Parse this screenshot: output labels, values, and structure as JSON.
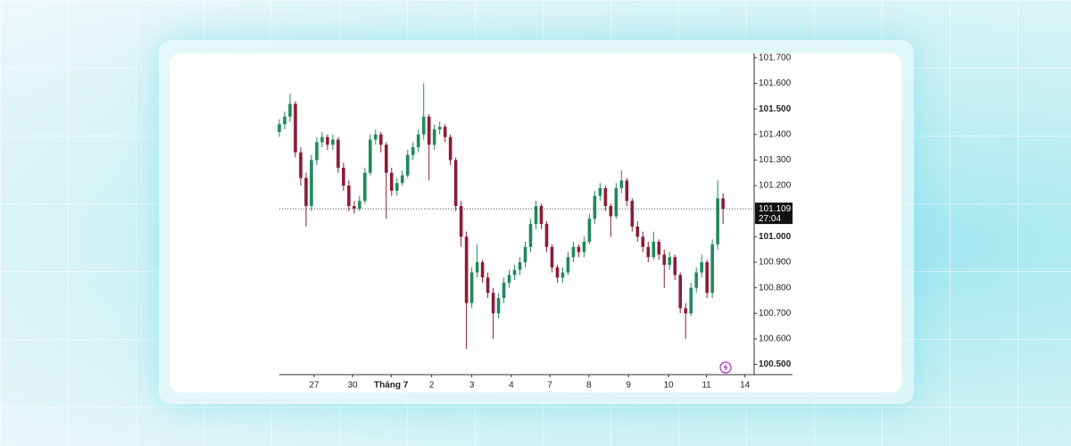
{
  "chart_data": {
    "type": "candlestick",
    "x": [
      0,
      1,
      2,
      3,
      4,
      5,
      6,
      7,
      8,
      9,
      10,
      11,
      12,
      13,
      14,
      15,
      16,
      17,
      18,
      19,
      20,
      21,
      22,
      23,
      24,
      25,
      26,
      27,
      28,
      29,
      30,
      31,
      32,
      33,
      34,
      35,
      36,
      37,
      38,
      39,
      40,
      41,
      42,
      43,
      44,
      45,
      46,
      47,
      48,
      49,
      50,
      51,
      52,
      53,
      54,
      55,
      56,
      57,
      58,
      59,
      60,
      61,
      62,
      63,
      64,
      65,
      66,
      67,
      68,
      69,
      70,
      71,
      72,
      73,
      74,
      75,
      76,
      77,
      78,
      79,
      80,
      81,
      82,
      83
    ],
    "open": [
      101.41,
      101.44,
      101.47,
      101.52,
      101.33,
      101.23,
      101.12,
      101.3,
      101.37,
      101.39,
      101.36,
      101.38,
      101.27,
      101.2,
      101.12,
      101.11,
      101.14,
      101.25,
      101.38,
      101.4,
      101.36,
      101.25,
      101.18,
      101.21,
      101.24,
      101.32,
      101.35,
      101.4,
      101.47,
      101.36,
      101.42,
      101.43,
      101.39,
      101.3,
      101.12,
      101.0,
      100.74,
      100.86,
      100.9,
      100.84,
      100.78,
      100.7,
      100.76,
      100.82,
      100.85,
      100.87,
      100.9,
      100.96,
      101.05,
      101.12,
      101.05,
      100.96,
      100.88,
      100.84,
      100.86,
      100.92,
      100.96,
      100.94,
      100.98,
      101.07,
      101.16,
      101.19,
      101.12,
      101.08,
      101.19,
      101.22,
      101.14,
      101.04,
      101.0,
      100.96,
      100.92,
      100.98,
      100.93,
      100.89,
      100.92,
      100.85,
      100.72,
      100.7,
      100.8,
      100.86,
      100.9,
      100.78,
      100.97,
      101.15
    ],
    "high": [
      101.46,
      101.49,
      101.56,
      101.53,
      101.35,
      101.25,
      101.32,
      101.39,
      101.41,
      101.4,
      101.4,
      101.39,
      101.29,
      101.22,
      101.14,
      101.16,
      101.27,
      101.4,
      101.42,
      101.41,
      101.37,
      101.27,
      101.23,
      101.26,
      101.34,
      101.37,
      101.42,
      101.6,
      101.48,
      101.44,
      101.45,
      101.44,
      101.4,
      101.31,
      101.14,
      101.02,
      100.88,
      100.97,
      100.91,
      100.86,
      100.8,
      100.78,
      100.84,
      100.87,
      100.89,
      100.92,
      100.98,
      101.07,
      101.14,
      101.13,
      101.06,
      100.97,
      100.89,
      100.88,
      100.94,
      100.98,
      100.97,
      101.0,
      101.09,
      101.18,
      101.21,
      101.2,
      101.13,
      101.21,
      101.26,
      101.23,
      101.15,
      101.06,
      101.02,
      100.98,
      101.02,
      100.99,
      100.95,
      100.94,
      100.93,
      100.86,
      100.74,
      100.82,
      100.88,
      100.93,
      100.91,
      100.99,
      101.22,
      101.17
    ],
    "low": [
      101.39,
      101.42,
      101.45,
      101.31,
      101.2,
      101.04,
      101.1,
      101.28,
      101.35,
      101.34,
      101.34,
      101.25,
      101.18,
      101.1,
      101.09,
      101.1,
      101.13,
      101.24,
      101.36,
      101.33,
      101.07,
      101.16,
      101.16,
      101.2,
      101.23,
      101.3,
      101.33,
      101.38,
      101.22,
      101.34,
      101.4,
      101.37,
      101.28,
      101.1,
      100.96,
      100.56,
      100.72,
      100.84,
      100.82,
      100.76,
      100.6,
      100.68,
      100.74,
      100.8,
      100.83,
      100.85,
      100.88,
      100.94,
      101.03,
      101.03,
      100.94,
      100.86,
      100.82,
      100.82,
      100.85,
      100.9,
      100.92,
      100.92,
      100.97,
      101.05,
      101.14,
      101.1,
      101.0,
      101.07,
      101.17,
      101.12,
      101.02,
      100.98,
      100.94,
      100.9,
      100.91,
      100.91,
      100.8,
      100.87,
      100.83,
      100.7,
      100.6,
      100.69,
      100.78,
      100.84,
      100.76,
      100.76,
      100.95,
      101.05
    ],
    "close": [
      101.44,
      101.47,
      101.52,
      101.33,
      101.23,
      101.12,
      101.3,
      101.37,
      101.39,
      101.36,
      101.38,
      101.27,
      101.2,
      101.12,
      101.11,
      101.14,
      101.25,
      101.38,
      101.4,
      101.36,
      101.25,
      101.18,
      101.21,
      101.24,
      101.32,
      101.35,
      101.4,
      101.47,
      101.36,
      101.42,
      101.43,
      101.39,
      101.3,
      101.12,
      101.0,
      100.74,
      100.86,
      100.9,
      100.84,
      100.78,
      100.7,
      100.76,
      100.82,
      100.85,
      100.87,
      100.9,
      100.96,
      101.05,
      101.12,
      101.05,
      100.96,
      100.88,
      100.84,
      100.86,
      100.92,
      100.96,
      100.94,
      100.98,
      101.07,
      101.16,
      101.19,
      101.12,
      101.08,
      101.19,
      101.22,
      101.14,
      101.04,
      101.0,
      100.96,
      100.92,
      100.98,
      100.93,
      100.89,
      100.92,
      100.85,
      100.72,
      100.7,
      100.8,
      100.86,
      100.9,
      100.78,
      100.97,
      101.15,
      101.109
    ],
    "up_color": "#1f8a5b",
    "down_color": "#8e1c35",
    "xlim": [
      0,
      96
    ],
    "xticks": [
      {
        "value": 6.5,
        "label": "27"
      },
      {
        "value": 13.7,
        "label": "30"
      },
      {
        "value": 20.9,
        "label": "Tháng 7"
      },
      {
        "value": 28.5,
        "label": "2"
      },
      {
        "value": 36,
        "label": "3"
      },
      {
        "value": 43.4,
        "label": "4"
      },
      {
        "value": 50.6,
        "label": "7"
      },
      {
        "value": 57.9,
        "label": "8"
      },
      {
        "value": 65.3,
        "label": "9"
      },
      {
        "value": 72.8,
        "label": "10"
      },
      {
        "value": 79.9,
        "label": "11"
      },
      {
        "value": 87.1,
        "label": "14"
      }
    ],
    "ylim": [
      100.46,
      101.717
    ],
    "yticks": [
      {
        "value": 101.7,
        "label": "101.700"
      },
      {
        "value": 101.6,
        "label": "101.600"
      },
      {
        "value": 101.5,
        "label": "101.500"
      },
      {
        "value": 101.4,
        "label": "101.400"
      },
      {
        "value": 101.3,
        "label": "101.300"
      },
      {
        "value": 101.2,
        "label": "101.200"
      },
      {
        "value": 101.0,
        "label": "101.000"
      },
      {
        "value": 100.9,
        "label": "100.900"
      },
      {
        "value": 100.8,
        "label": "100.800"
      },
      {
        "value": 100.7,
        "label": "100.700"
      },
      {
        "value": 100.6,
        "label": "100.600"
      },
      {
        "value": 100.5,
        "label": "100.500"
      }
    ],
    "last_price": 101.109,
    "countdown": "27:04",
    "grid": false
  }
}
